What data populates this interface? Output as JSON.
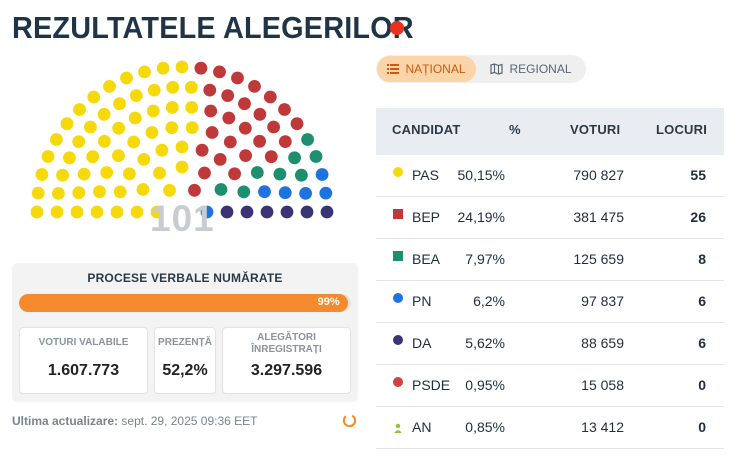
{
  "header": {
    "title": "REZULTATELE ALEGERILOR",
    "live_color": "#e8321e"
  },
  "parliament": {
    "total_seats": "101",
    "seat_counts": [
      {
        "party": "PAS",
        "seats": 55,
        "color": "#f5d90a"
      },
      {
        "party": "BEP",
        "seats": 26,
        "color": "#c0393a"
      },
      {
        "party": "BEA",
        "seats": 8,
        "color": "#1d8f6e"
      },
      {
        "party": "PN",
        "seats": 6,
        "color": "#1f73e0"
      },
      {
        "party": "DA",
        "seats": 6,
        "color": "#3a3475"
      }
    ]
  },
  "count_panel": {
    "title": "PROCESE VERBALE NUMĂRATE",
    "progress_label": "99%",
    "progress_value": 99,
    "stats": {
      "valid_votes": {
        "label": "VOTURI VALABILE",
        "value": "1.607.773"
      },
      "turnout": {
        "label": "PREZENȚĂ",
        "value": "52,2%"
      },
      "registered": {
        "label": "ALEGĂTORI ÎNREGISTRAȚI",
        "value": "3.297.596"
      }
    }
  },
  "footer": {
    "updated_label": "Ultima actualizare:",
    "updated_value": "sept. 29, 2025 09:36 EET"
  },
  "tabs": {
    "national": "NAȚIONAL",
    "regional": "REGIONAL"
  },
  "table": {
    "headers": {
      "candidate": "CANDIDAT",
      "percent": "%",
      "votes": "VOTURI",
      "seats": "LOCURI"
    },
    "rows": [
      {
        "name": "PAS",
        "pct": "50,15%",
        "votes": "790 827",
        "seats": "55",
        "color": "#f5d90a",
        "icon": "circle"
      },
      {
        "name": "BEP",
        "pct": "24,19%",
        "votes": "381 475",
        "seats": "26",
        "color": "#c0393a",
        "icon": "square"
      },
      {
        "name": "BEA",
        "pct": "7,97%",
        "votes": "125 659",
        "seats": "8",
        "color": "#1d8f6e",
        "icon": "square"
      },
      {
        "name": "PN",
        "pct": "6,2%",
        "votes": "97 837",
        "seats": "6",
        "color": "#1f73e0",
        "icon": "circle"
      },
      {
        "name": "DA",
        "pct": "5,62%",
        "votes": "88 659",
        "seats": "6",
        "color": "#3a3475",
        "icon": "circle"
      },
      {
        "name": "PSDE",
        "pct": "0,95%",
        "votes": "15 058",
        "seats": "0",
        "color": "#d0413f",
        "icon": "circle"
      },
      {
        "name": "AN",
        "pct": "0,85%",
        "votes": "13 412",
        "seats": "0",
        "color": "#8fc13a",
        "icon": "person"
      }
    ]
  },
  "colors": {
    "accent": "#f58a2c",
    "tab_active_bg": "#fbd4a7",
    "tab_active_text": "#c85b12"
  }
}
